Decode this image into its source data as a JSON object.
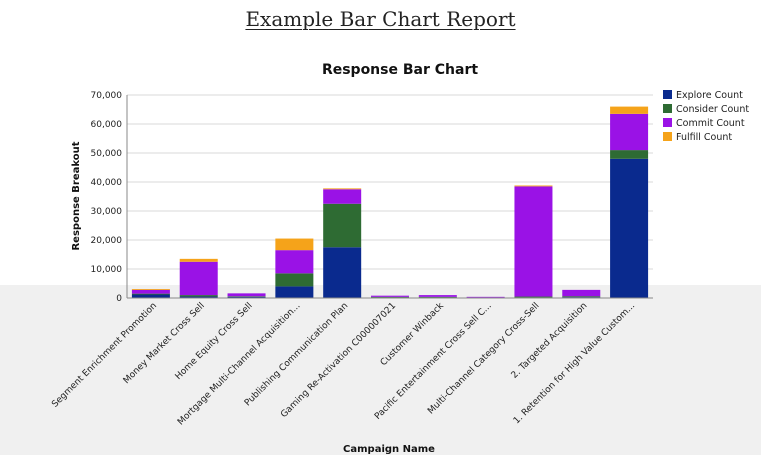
{
  "report": {
    "title": "Example Bar Chart Report"
  },
  "chart_data": {
    "type": "bar",
    "stacked": true,
    "title": "Response Bar Chart",
    "xlabel": "Campaign Name",
    "ylabel": "Response Breakout",
    "ylim": [
      0,
      70000
    ],
    "yticks": [
      0,
      10000,
      20000,
      30000,
      40000,
      50000,
      60000,
      70000
    ],
    "ytick_labels": [
      "0",
      "10,000",
      "20,000",
      "30,000",
      "40,000",
      "50,000",
      "60,000",
      "70,000"
    ],
    "grid": true,
    "legend_position": "top-right",
    "categories": [
      "Segment Enrichment Promotion",
      "Money Market Cross Sell",
      "Home Equity Cross Sell",
      "Mortgage Multi-Channel Acquisition...",
      "Publishing Communication Plan",
      "Gaming Re-Activation C000007021",
      "Customer Winback",
      "Pacific Entertainment Cross Sell C...",
      "Multi-Channel Category Cross-Sell",
      "2. Targeted Acquisition",
      "1. Retention for High Value Custom..."
    ],
    "series": [
      {
        "name": "Explore Count",
        "color": "#0a2a8e",
        "values": [
          1200,
          500,
          400,
          4000,
          17500,
          200,
          200,
          100,
          200,
          300,
          48000
        ]
      },
      {
        "name": "Consider Count",
        "color": "#2e6b33",
        "values": [
          300,
          500,
          200,
          4500,
          15000,
          200,
          200,
          100,
          300,
          300,
          3000
        ]
      },
      {
        "name": "Commit Count",
        "color": "#9a12e6",
        "values": [
          1300,
          11500,
          1000,
          8000,
          5000,
          400,
          600,
          200,
          38000,
          2200,
          12500
        ]
      },
      {
        "name": "Fulfill Count",
        "color": "#f5a31a",
        "values": [
          300,
          1000,
          0,
          4000,
          300,
          0,
          0,
          0,
          300,
          0,
          2500
        ]
      }
    ]
  }
}
